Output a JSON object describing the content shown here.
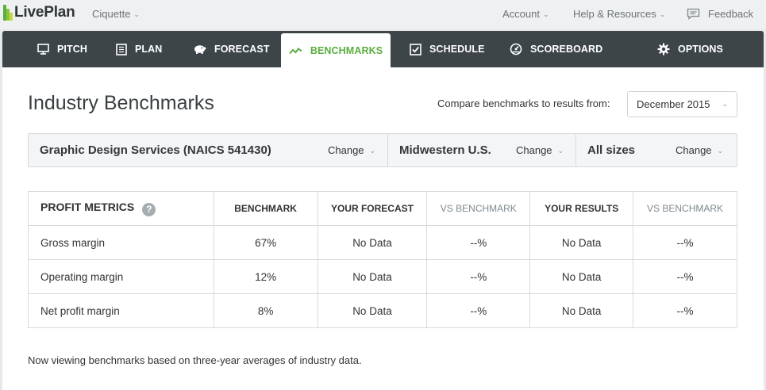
{
  "header": {
    "logo_text": "LivePlan",
    "company": "Ciquette",
    "account": "Account",
    "help": "Help & Resources",
    "feedback": "Feedback"
  },
  "tabs": [
    {
      "label": "PITCH",
      "icon": "monitor-icon"
    },
    {
      "label": "PLAN",
      "icon": "document-icon"
    },
    {
      "label": "FORECAST",
      "icon": "piggy-bank-icon"
    },
    {
      "label": "BENCHMARKS",
      "icon": "trend-line-icon",
      "active": true
    },
    {
      "label": "SCHEDULE",
      "icon": "checkbox-icon"
    },
    {
      "label": "SCOREBOARD",
      "icon": "gauge-icon"
    },
    {
      "label": "OPTIONS",
      "icon": "gear-icon"
    }
  ],
  "page": {
    "title": "Industry Benchmarks",
    "compare_label": "Compare benchmarks to results from:",
    "compare_value": "December 2015"
  },
  "filters": {
    "industry": "Graphic Design Services (NAICS 541430)",
    "region": "Midwestern U.S.",
    "size": "All sizes",
    "change_label": "Change"
  },
  "table": {
    "headers": [
      "PROFIT METRICS",
      "BENCHMARK",
      "YOUR FORECAST",
      "VS BENCHMARK",
      "YOUR RESULTS",
      "VS BENCHMARK"
    ],
    "rows": [
      [
        "Gross margin",
        "67%",
        "No Data",
        "--%",
        "No Data",
        "--%"
      ],
      [
        "Operating margin",
        "12%",
        "No Data",
        "--%",
        "No Data",
        "--%"
      ],
      [
        "Net profit margin",
        "8%",
        "No Data",
        "--%",
        "No Data",
        "--%"
      ]
    ]
  },
  "footnote": "Now viewing benchmarks based on three-year averages of industry data.",
  "colors": {
    "accent": "#5aad3f",
    "tabbar": "#3e4549"
  }
}
